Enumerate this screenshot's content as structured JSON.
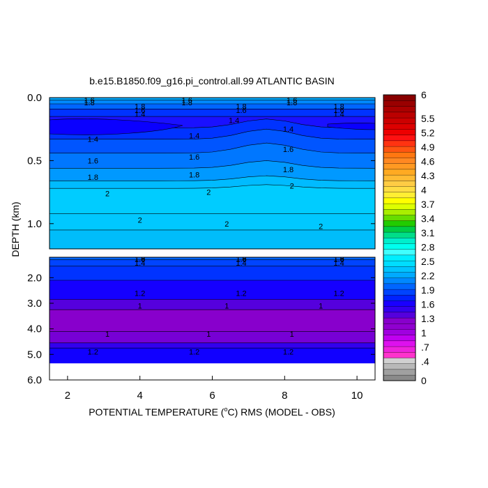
{
  "chart_data": {
    "type": "heatmap",
    "title": "b.e15.B1850.f09_g16.pi_control.all.99 ATLANTIC BASIN",
    "xlabel": "POTENTIAL TEMPERATURE (°C) RMS (MODEL - OBS)",
    "xlabel_parts": [
      "POTENTIAL TEMPERATURE (",
      "o",
      "C) RMS (MODEL - OBS)"
    ],
    "ylabel": "DEPTH (km)",
    "xlim": [
      1.5,
      10.5
    ],
    "x_ticks": [
      "2",
      "4",
      "6",
      "8",
      "10"
    ],
    "x_tick_values": [
      2,
      4,
      6,
      8,
      10
    ],
    "ylim": [
      0,
      6
    ],
    "upper_panel": {
      "depth_range": [
        0.0,
        1.2
      ],
      "y_ticks": [
        "0.0",
        "0.5",
        "1.0"
      ],
      "y_tick_values": [
        0.0,
        0.5,
        1.0
      ]
    },
    "lower_panel": {
      "depth_range": [
        1.2,
        6.0
      ],
      "data_bottom_depth": 5.35,
      "y_ticks": [
        "2.0",
        "3.0",
        "4.0",
        "5.0",
        "6.0"
      ],
      "y_tick_values": [
        2.0,
        3.0,
        4.0,
        5.0,
        6.0
      ]
    },
    "colorbar": {
      "range": [
        0,
        6
      ],
      "tick_labels": [
        "6",
        "5.5",
        "5.2",
        "4.9",
        "4.6",
        "4.3",
        "4",
        "3.7",
        "3.4",
        "3.1",
        "2.8",
        "2.5",
        "2.2",
        "1.9",
        "1.6",
        "1.3",
        "1",
        ".7",
        ".4",
        "0"
      ],
      "tick_values": [
        6,
        5.5,
        5.2,
        4.9,
        4.6,
        4.3,
        4,
        3.7,
        3.4,
        3.1,
        2.8,
        2.5,
        2.2,
        1.9,
        1.6,
        1.3,
        1,
        0.7,
        0.4,
        0
      ],
      "colors": [
        "#8a8a8a",
        "#a0a0a0",
        "#b8b8b8",
        "#d0d0d0",
        "#ff33cc",
        "#ee22dd",
        "#dd11ee",
        "#c000f0",
        "#a000e0",
        "#9000d0",
        "#8800cc",
        "#5500dd",
        "#3300ee",
        "#1a00ff",
        "#0022ff",
        "#0044ff",
        "#0066ff",
        "#0088ff",
        "#00aaff",
        "#00c4ff",
        "#00ddff",
        "#00eeff",
        "#40ffff",
        "#00ffee",
        "#00eecc",
        "#00dd88",
        "#00cc44",
        "#22cc00",
        "#66dd00",
        "#aaee00",
        "#ddff00",
        "#ffff00",
        "#ffee33",
        "#ffdd44",
        "#ffcc44",
        "#ffbb33",
        "#ffaa22",
        "#ff9922",
        "#ff8822",
        "#ff7711",
        "#ff5511",
        "#ff3311",
        "#ff1111",
        "#ee0000",
        "#dd0000",
        "#cc0000",
        "#bb0000",
        "#aa0000",
        "#990000",
        "#880000"
      ]
    },
    "contour_labels": [
      {
        "text": "1.6",
        "x": 2.6,
        "depth": 0.02
      },
      {
        "text": "1.8",
        "x": 2.6,
        "depth": 0.04
      },
      {
        "text": "1.6",
        "x": 5.3,
        "depth": 0.02
      },
      {
        "text": "1.8",
        "x": 5.3,
        "depth": 0.04
      },
      {
        "text": "1.8",
        "x": 6.8,
        "depth": 0.07
      },
      {
        "text": "1.6",
        "x": 6.8,
        "depth": 0.1
      },
      {
        "text": "1.4",
        "x": 6.6,
        "depth": 0.18
      },
      {
        "text": "1.6",
        "x": 8.2,
        "depth": 0.02
      },
      {
        "text": "1.8",
        "x": 8.2,
        "depth": 0.04
      },
      {
        "text": "1.8",
        "x": 9.5,
        "depth": 0.07
      },
      {
        "text": "1.6",
        "x": 9.5,
        "depth": 0.1
      },
      {
        "text": "1.4",
        "x": 9.5,
        "depth": 0.13
      },
      {
        "text": "1.8",
        "x": 4.0,
        "depth": 0.07
      },
      {
        "text": "1.6",
        "x": 4.0,
        "depth": 0.1
      },
      {
        "text": "1.4",
        "x": 4.0,
        "depth": 0.13
      },
      {
        "text": "1.4",
        "x": 2.7,
        "depth": 0.33
      },
      {
        "text": "1.4",
        "x": 5.5,
        "depth": 0.3
      },
      {
        "text": "1.4",
        "x": 8.1,
        "depth": 0.25
      },
      {
        "text": "1.6",
        "x": 2.7,
        "depth": 0.5
      },
      {
        "text": "1.6",
        "x": 5.5,
        "depth": 0.47
      },
      {
        "text": "1.6",
        "x": 8.1,
        "depth": 0.41
      },
      {
        "text": "1.8",
        "x": 2.7,
        "depth": 0.63
      },
      {
        "text": "1.8",
        "x": 5.5,
        "depth": 0.61
      },
      {
        "text": "1.8",
        "x": 8.1,
        "depth": 0.57
      },
      {
        "text": "2",
        "x": 3.1,
        "depth": 0.76
      },
      {
        "text": "2",
        "x": 5.9,
        "depth": 0.75
      },
      {
        "text": "2",
        "x": 8.2,
        "depth": 0.7
      },
      {
        "text": "2",
        "x": 4.0,
        "depth": 0.97
      },
      {
        "text": "2",
        "x": 6.4,
        "depth": 1.0
      },
      {
        "text": "2",
        "x": 9.0,
        "depth": 1.02
      },
      {
        "text": "1.6",
        "x": 4.0,
        "depth": 1.25
      },
      {
        "text": "1.8",
        "x": 4.0,
        "depth": 1.27
      },
      {
        "text": "1.4",
        "x": 4.0,
        "depth": 1.42
      },
      {
        "text": "1.6",
        "x": 6.8,
        "depth": 1.25
      },
      {
        "text": "1.8",
        "x": 6.8,
        "depth": 1.27
      },
      {
        "text": "1.4",
        "x": 6.8,
        "depth": 1.42
      },
      {
        "text": "1.6",
        "x": 9.5,
        "depth": 1.25
      },
      {
        "text": "1.8",
        "x": 9.5,
        "depth": 1.27
      },
      {
        "text": "1.4",
        "x": 9.5,
        "depth": 1.42
      },
      {
        "text": "1.2",
        "x": 4.0,
        "depth": 2.6
      },
      {
        "text": "1.2",
        "x": 6.8,
        "depth": 2.6
      },
      {
        "text": "1.2",
        "x": 9.5,
        "depth": 2.6
      },
      {
        "text": "1",
        "x": 4.0,
        "depth": 3.1
      },
      {
        "text": "1",
        "x": 6.4,
        "depth": 3.1
      },
      {
        "text": "1",
        "x": 9.0,
        "depth": 3.1
      },
      {
        "text": "1",
        "x": 3.1,
        "depth": 4.2
      },
      {
        "text": "1",
        "x": 5.9,
        "depth": 4.2
      },
      {
        "text": "1",
        "x": 8.2,
        "depth": 4.2
      },
      {
        "text": "1.2",
        "x": 2.7,
        "depth": 4.9
      },
      {
        "text": "1.2",
        "x": 5.5,
        "depth": 4.9
      },
      {
        "text": "1.2",
        "x": 8.1,
        "depth": 4.9
      }
    ]
  }
}
